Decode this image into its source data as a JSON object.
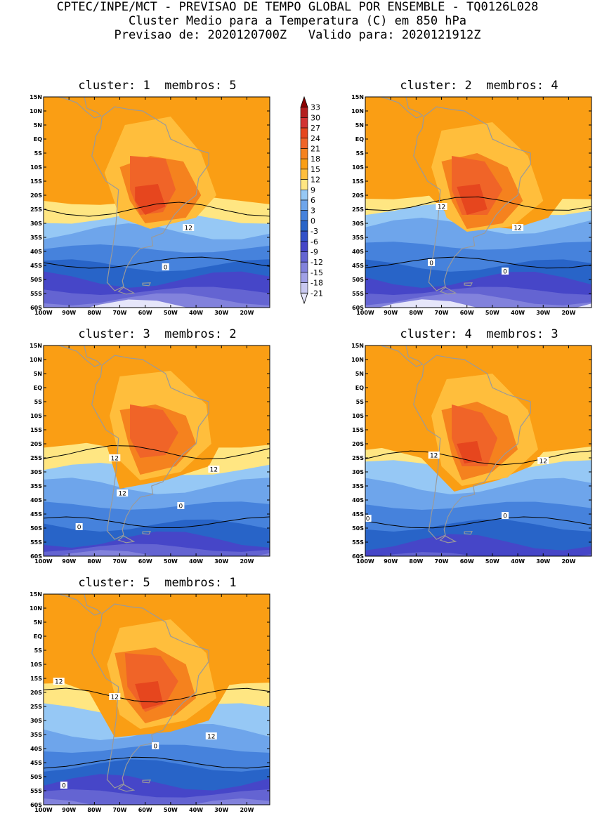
{
  "header": {
    "line1": "CPTEC/INPE/MCT - PREVISAO DE TEMPO GLOBAL POR ENSEMBLE - TQ0126L028",
    "line2": "Cluster Medio para a Temperatura (C) em 850 hPa",
    "line3": "Previsao de: 2020120700Z   Valido para: 2020121912Z"
  },
  "axes": {
    "lat_labels": [
      "15N",
      "10N",
      "5N",
      "EQ",
      "5S",
      "10S",
      "15S",
      "20S",
      "25S",
      "30S",
      "35S",
      "40S",
      "45S",
      "50S",
      "55S",
      "60S"
    ],
    "lon_labels": [
      "100W",
      "90W",
      "80W",
      "70W",
      "60W",
      "50W",
      "40W",
      "30W",
      "20W"
    ]
  },
  "colorbar": {
    "levels": [
      "33",
      "30",
      "27",
      "24",
      "21",
      "18",
      "15",
      "12",
      "9",
      "6",
      "3",
      "0",
      "-3",
      "-6",
      "-9",
      "-12",
      "-15",
      "-18",
      "-21"
    ],
    "colors": [
      "#8c0000",
      "#b41e1e",
      "#d23232",
      "#e6461e",
      "#f06428",
      "#f5821e",
      "#fa9e14",
      "#ffbe3c",
      "#ffe682",
      "#96c8f5",
      "#6ea5eb",
      "#4682dc",
      "#2864c8",
      "#3250c8",
      "#4646c8",
      "#6464d2",
      "#8282dc",
      "#a0a0e6",
      "#c8c8f0",
      "#e6e6fa"
    ]
  },
  "panels": [
    {
      "title": "cluster: 1  membros: 5",
      "contour_labels": [
        {
          "text": "12",
          "lon": -43,
          "lat": -31.5
        },
        {
          "text": "0",
          "lon": -52,
          "lat": -45.5
        }
      ]
    },
    {
      "title": "cluster: 2  membros: 4",
      "contour_labels": [
        {
          "text": "12",
          "lon": -70,
          "lat": -24
        },
        {
          "text": "12",
          "lon": -40,
          "lat": -31.5
        },
        {
          "text": "0",
          "lon": -74,
          "lat": -44
        },
        {
          "text": "0",
          "lon": -45,
          "lat": -47
        }
      ]
    },
    {
      "title": "cluster: 3  membros: 2",
      "contour_labels": [
        {
          "text": "12",
          "lon": -72,
          "lat": -25
        },
        {
          "text": "12",
          "lon": -69,
          "lat": -37.5
        },
        {
          "text": "12",
          "lon": -33,
          "lat": -29
        },
        {
          "text": "0",
          "lon": -46,
          "lat": -42
        },
        {
          "text": "0",
          "lon": -86,
          "lat": -49.5
        }
      ]
    },
    {
      "title": "cluster: 4  membros: 3",
      "contour_labels": [
        {
          "text": "12",
          "lon": -73,
          "lat": -24
        },
        {
          "text": "12",
          "lon": -30,
          "lat": -26
        },
        {
          "text": "0",
          "lon": -99,
          "lat": -46.5
        },
        {
          "text": "0",
          "lon": -45,
          "lat": -45.5
        }
      ]
    },
    {
      "title": "cluster: 5  membros: 1",
      "contour_labels": [
        {
          "text": "12",
          "lon": -94,
          "lat": -16
        },
        {
          "text": "12",
          "lon": -72,
          "lat": -21.5
        },
        {
          "text": "12",
          "lon": -34,
          "lat": -35.5
        },
        {
          "text": "0",
          "lon": -56,
          "lat": -39
        },
        {
          "text": "0",
          "lon": -92,
          "lat": -53
        }
      ]
    }
  ]
}
